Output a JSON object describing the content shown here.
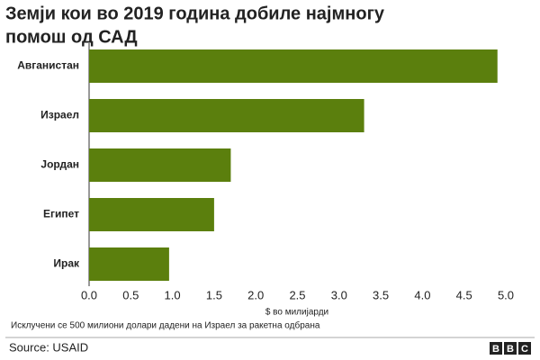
{
  "chart_data": {
    "type": "bar",
    "orientation": "horizontal",
    "title": [
      "Земји кои во 2019 година добиле најмногу",
      "помош од САД"
    ],
    "categories": [
      "Авганистан",
      "Израел",
      "Јордан",
      "Египет",
      "Ирак"
    ],
    "values": [
      4.9,
      3.3,
      1.7,
      1.5,
      0.96
    ],
    "color": "#5b7f0d",
    "xlim": [
      0,
      5
    ],
    "xticks": [
      {
        "value": 0,
        "label": "0.0"
      },
      0.5,
      {
        "value": 1,
        "label": "1.0"
      },
      1.5,
      {
        "value": 2,
        "label": "2.0"
      },
      2.5,
      {
        "value": 3,
        "label": "3.0"
      },
      3.5,
      {
        "value": 4,
        "label": "4.0"
      },
      4.5,
      {
        "value": 5,
        "label": "5.0"
      }
    ],
    "xlabel": "$ во милијарди",
    "note": "Исклучени се 500 милиони долари дадени на Израел за ракетна одбрана",
    "source": "Source: USAID",
    "logo": [
      "B",
      "B",
      "C"
    ]
  }
}
